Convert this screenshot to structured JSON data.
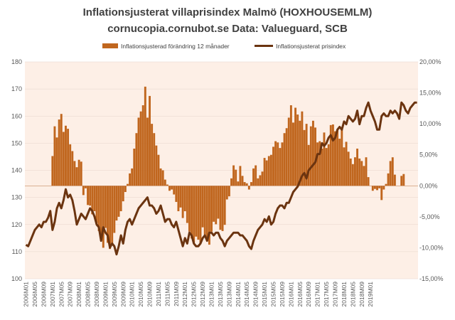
{
  "chart_data": {
    "type": "bar+line",
    "title": "Inflationsjusterat villaprisindex Malmö (HOXHOUSEMLM)",
    "subtitle": "cornucopia.cornubot.se Data: Valueguard, SCB",
    "legend": {
      "placement": "top",
      "entries": [
        "Inflationsjusterad förändring 12 månader",
        "Inflationsjusterat prisindex"
      ]
    },
    "colors": {
      "bars": "#C0661E",
      "line": "#6B3410",
      "plot_background": "#FDEFE6",
      "text": "#404040"
    },
    "y_left": {
      "min": 100,
      "max": 180,
      "ticks": [
        100,
        110,
        120,
        130,
        140,
        150,
        160,
        170,
        180
      ],
      "tick_labels": [
        "100",
        "110",
        "120",
        "130",
        "140",
        "150",
        "160",
        "170",
        "180"
      ]
    },
    "y_right": {
      "min": -0.15,
      "max": 0.2,
      "ticks": [
        -0.15,
        -0.1,
        -0.05,
        0.0,
        0.05,
        0.1,
        0.15,
        0.2
      ],
      "tick_labels": [
        "-15,00%",
        "-10,00%",
        "-5,00%",
        "0,00%",
        "5,00%",
        "10,00%",
        "15,00%",
        "20,00%"
      ]
    },
    "x_tick_labels": [
      "2006M01",
      "2006M05",
      "2006M09",
      "2007M01",
      "2007M05",
      "2007M09",
      "2008M01",
      "2008M05",
      "2008M09",
      "2009M01",
      "2009M05",
      "2009M09",
      "2010M01",
      "2010M05",
      "2010M09",
      "2011M01",
      "2011M05",
      "2011M09",
      "2012M01",
      "2012M05",
      "2012M09",
      "2013M01",
      "2013M05",
      "2013M09",
      "2014M01",
      "2014M05",
      "2014M09",
      "2015M01",
      "2015M05",
      "2015M09",
      "2016M01",
      "2016M05",
      "2016M09",
      "2017M01",
      "2017M05",
      "2017M09",
      "2018M01",
      "2018M05",
      "2018M09",
      "2019M01"
    ],
    "x_start": "2006-01",
    "series": [
      {
        "name": "Inflationsjusterad förändring 12 månader",
        "kind": "bar",
        "axis": "right",
        "values": [
          0.0,
          0.0,
          0.0,
          0.0,
          0.0,
          0.0,
          0.0,
          0.0,
          0.0,
          0.0,
          0.0,
          0.0,
          0.048,
          0.096,
          0.078,
          0.107,
          0.116,
          0.087,
          0.097,
          0.092,
          0.067,
          0.056,
          0.04,
          0.03,
          0.042,
          0.039,
          -0.015,
          -0.004,
          -0.031,
          -0.032,
          -0.046,
          -0.041,
          -0.06,
          -0.073,
          -0.082,
          -0.1,
          -0.068,
          -0.092,
          -0.102,
          -0.094,
          -0.076,
          -0.056,
          -0.05,
          -0.041,
          -0.025,
          -0.01,
          0.003,
          0.02,
          0.028,
          0.06,
          0.085,
          0.11,
          0.12,
          0.13,
          0.16,
          0.11,
          0.145,
          0.1,
          0.085,
          0.065,
          0.05,
          0.028,
          0.025,
          0.01,
          0.002,
          -0.008,
          -0.006,
          -0.014,
          -0.026,
          -0.041,
          -0.035,
          -0.052,
          -0.041,
          -0.06,
          -0.074,
          -0.085,
          -0.092,
          -0.082,
          -0.087,
          -0.093,
          -0.067,
          -0.079,
          -0.084,
          -0.095,
          -0.074,
          -0.058,
          -0.062,
          -0.053,
          -0.071,
          -0.073,
          -0.063,
          -0.022,
          -0.017,
          0.012,
          0.033,
          0.026,
          0.007,
          0.032,
          0.016,
          0.006,
          0.004,
          -0.006,
          0.006,
          0.028,
          0.033,
          0.012,
          0.017,
          0.023,
          0.045,
          0.041,
          0.048,
          0.05,
          0.063,
          0.072,
          0.07,
          0.061,
          0.07,
          0.085,
          0.093,
          0.11,
          0.13,
          0.102,
          0.126,
          0.115,
          0.105,
          0.12,
          0.09,
          0.1,
          0.066,
          0.096,
          0.105,
          0.094,
          0.07,
          0.072,
          0.06,
          0.086,
          0.061,
          0.067,
          0.098,
          0.099,
          0.088,
          0.091,
          0.076,
          0.094,
          0.062,
          0.071,
          0.055,
          0.044,
          0.035,
          0.046,
          0.06,
          0.044,
          0.04,
          0.032,
          0.046,
          0.014,
          0.0,
          -0.008,
          -0.005,
          -0.007,
          -0.004,
          -0.023,
          -0.006,
          0.003,
          0.02,
          0.04,
          0.046,
          0.018,
          0.0,
          0.0,
          0.016,
          0.019
        ]
      },
      {
        "name": "Inflationsjusterat prisindex",
        "kind": "line",
        "axis": "left",
        "values": [
          112.5,
          112,
          114,
          116,
          118,
          119,
          120,
          119,
          121,
          121,
          122.5,
          125,
          118,
          121,
          126,
          128,
          126,
          129,
          133,
          130,
          131,
          129,
          125,
          120,
          122,
          124,
          123,
          122,
          124,
          126,
          125,
          123,
          120,
          119,
          114,
          119,
          117,
          116,
          111.5,
          113,
          112,
          109,
          112,
          116,
          113,
          118,
          121,
          122,
          120,
          122,
          124,
          126,
          127,
          128,
          129,
          130,
          127,
          127,
          126,
          124,
          125,
          127,
          124,
          121,
          122,
          122,
          120,
          119,
          121,
          118,
          115,
          112,
          115,
          113,
          117,
          116,
          113,
          112,
          112,
          113,
          115,
          116,
          114,
          117,
          117,
          116,
          117,
          117,
          115,
          114,
          112,
          114,
          115,
          116,
          117,
          117,
          117,
          116,
          116,
          115,
          114,
          112,
          111,
          114,
          116,
          118,
          119,
          120,
          122,
          121,
          123,
          120,
          121,
          124,
          126,
          127,
          127,
          126,
          128,
          128,
          130,
          132,
          133,
          134,
          136,
          138,
          139,
          137,
          140,
          141,
          142,
          143,
          146,
          146,
          150,
          149,
          150,
          152,
          153,
          151,
          152,
          155,
          156,
          155,
          158,
          157,
          160,
          159,
          158,
          159,
          162,
          157,
          160,
          160,
          163,
          165,
          162,
          160,
          158,
          155,
          155,
          160,
          161,
          160,
          160,
          162,
          161,
          162,
          161,
          159,
          165,
          164,
          162,
          161,
          163,
          164,
          165,
          165
        ]
      }
    ]
  }
}
